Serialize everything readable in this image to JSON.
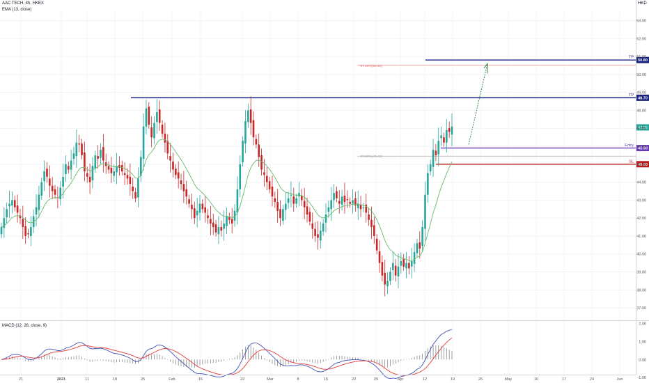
{
  "header": {
    "symbol": "AAC TECH, 4h, HKEX",
    "indicator": "EMA (13, close)",
    "macd_label": "MACD (12, 26, close, 9)"
  },
  "chart_data": {
    "type": "candlestick",
    "currency": "HKD",
    "price_axis": {
      "ticks": [
        37,
        38,
        39,
        40,
        41,
        42,
        43,
        44,
        45,
        46,
        47,
        48,
        49,
        50,
        51,
        52,
        53
      ],
      "ylim": [
        36.5,
        53.6
      ]
    },
    "x_axis": {
      "tick_labels": [
        "21",
        "2021",
        "11",
        "18",
        "25",
        "Feb",
        "15",
        "22",
        "Mar",
        "8",
        "15",
        "22",
        "29",
        "Apr",
        "12",
        "19",
        "26",
        "May",
        "10",
        "17",
        "24",
        "Jun"
      ]
    },
    "levels": [
      {
        "name": "tp-2",
        "tag": "TP",
        "badge": "50.80",
        "value": 50.8,
        "color": "#1a237e"
      },
      {
        "name": "tp-1",
        "tag": "TP",
        "badge": "48.70",
        "value": 48.7,
        "color": "#1a237e"
      },
      {
        "name": "entry",
        "tag": "Entry",
        "badge": "45.90",
        "value": 45.9,
        "color": "#673ab7"
      },
      {
        "name": "sl",
        "tag": "SL",
        "badge": "45.00",
        "value": 45.0,
        "color": "#b71c1c"
      }
    ],
    "last_price": {
      "value": 47.05,
      "label": "47.05"
    },
    "fib_levels": [
      {
        "label": "-27.20%(50.50)",
        "value": 50.5,
        "color": "#e57373"
      },
      {
        "label": "23.60%(45.45)",
        "value": 45.45,
        "color": "#9e9e9e"
      }
    ],
    "closes": [
      41.5,
      42.0,
      42.5,
      42.8,
      43.0,
      42.6,
      42.3,
      42.0,
      41.5,
      41.0,
      41.1,
      41.5,
      42.1,
      42.6,
      43.3,
      44.0,
      44.6,
      44.3,
      43.8,
      43.5,
      43.3,
      43.1,
      43.7,
      44.3,
      45.0,
      44.7,
      45.2,
      45.6,
      46.2,
      46.1,
      45.5,
      44.6,
      44.3,
      44.0,
      44.9,
      45.5,
      45.3,
      45.8,
      45.2,
      44.9,
      44.7,
      44.5,
      44.6,
      44.9,
      44.8,
      44.6,
      44.4,
      44.2,
      43.9,
      43.5,
      43.1,
      44.2,
      45.4,
      47.1,
      48.1,
      47.2,
      46.5,
      47.3,
      47.9,
      47.3,
      46.7,
      46.2,
      45.6,
      45.2,
      44.7,
      44.4,
      44.2,
      43.9,
      43.5,
      43.2,
      42.8,
      42.5,
      42.0,
      42.4,
      42.8,
      42.5,
      42.3,
      42.0,
      41.7,
      41.5,
      41.2,
      41.5,
      41.3,
      41.7,
      42.1,
      41.9,
      41.7,
      42.4,
      43.6,
      45.0,
      46.3,
      47.4,
      48.0,
      47.3,
      46.5,
      46.1,
      45.4,
      44.7,
      44.4,
      44.0,
      43.6,
      43.2,
      42.9,
      42.4,
      42.0,
      42.5,
      42.8,
      43.1,
      43.3,
      42.8,
      43.1,
      43.4,
      43.0,
      42.6,
      42.2,
      41.8,
      41.4,
      41.0,
      40.9,
      41.3,
      41.7,
      42.2,
      42.6,
      43.0,
      43.4,
      43.1,
      42.8,
      43.2,
      42.9,
      43.0,
      42.8,
      43.0,
      42.7,
      42.8,
      42.5,
      42.6,
      42.3,
      41.9,
      41.5,
      41.0,
      40.2,
      39.5,
      38.8,
      38.3,
      38.5,
      39.0,
      39.5,
      38.8,
      39.3,
      39.6,
      39.3,
      39.5,
      39.2,
      39.6,
      40.1,
      40.6,
      40.3,
      41.5,
      43.3,
      44.5,
      45.0,
      45.8,
      45.5,
      46.3,
      46.6,
      46.2,
      46.9,
      46.8,
      47.1
    ],
    "ema_13_label": "EMA (13, close)",
    "macd": {
      "ylim": [
        -0.8,
        2.1
      ],
      "ticks": [
        2.0,
        1.0,
        0.0,
        -1.0
      ],
      "tick_labels": [
        "2.00",
        "1.00",
        "0.00",
        "-1.00"
      ]
    }
  }
}
